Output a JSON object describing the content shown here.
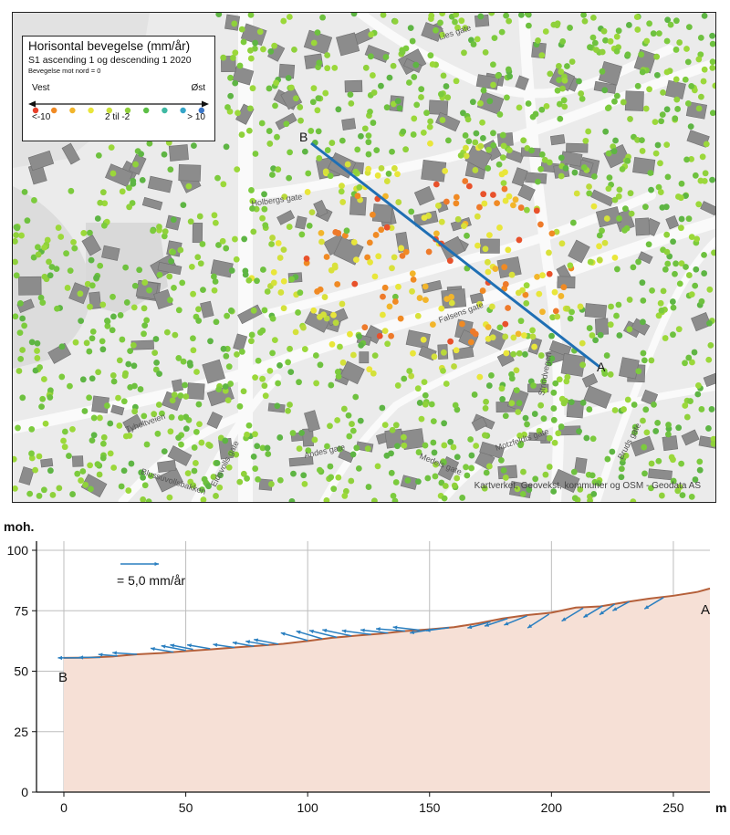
{
  "legend": {
    "title": "Horisontal bevegelse (mm/år)",
    "subtitle": "S1 ascending 1 og descending 1 2020",
    "note": "Bevegelse mot nord = 0",
    "west_label": "Vest",
    "east_label": "Øst",
    "min_label": "<-10",
    "mid_label": "2 til -2",
    "max_label": "> 10",
    "colors": [
      "#e8412b",
      "#f08a24",
      "#f2b52b",
      "#e9e63a",
      "#c9df3a",
      "#8fcf3c",
      "#5cbf45",
      "#3fb9a3",
      "#36a6c9",
      "#3a76c8"
    ]
  },
  "map": {
    "point_a_label": "A",
    "point_b_label": "B",
    "profile_line_color": "#1f6fb4",
    "credit": "Kartverket, Geovekst, kommuner og OSM - Geodata AS",
    "street_labels": [
      "Lies gate",
      "Holbergs gate",
      "Falsens gate",
      "Strindvegen",
      "Tyholtveien",
      "Blussuvollsbakken",
      "Eidsvolls gate",
      "Medels gate",
      "Motzfeldts gate",
      "Andes gate",
      "Bruds gate"
    ]
  },
  "chart_data": {
    "type": "line",
    "title": "",
    "ylabel": "moh.",
    "xlabel": "m",
    "xlim": [
      0,
      265
    ],
    "ylim": [
      0,
      100
    ],
    "x_ticks": [
      0,
      50,
      100,
      150,
      200,
      250
    ],
    "y_ticks": [
      0,
      25,
      50,
      75,
      100
    ],
    "grid": true,
    "start_label": "B",
    "end_label": "A",
    "scale_label": "= 5,0 mm/år",
    "scale_value_mm_per_year": 5.0,
    "profile_color": "#b5603a",
    "fill_color": "#f6e0d6",
    "arrow_color": "#2a7fc0",
    "profile": {
      "x": [
        0,
        10,
        20,
        30,
        40,
        50,
        60,
        70,
        80,
        90,
        100,
        110,
        120,
        130,
        140,
        150,
        160,
        170,
        180,
        190,
        200,
        210,
        220,
        230,
        240,
        250,
        260,
        265
      ],
      "y": [
        55.5,
        55.6,
        56.1,
        57.0,
        57.5,
        58.3,
        59.0,
        59.8,
        60.5,
        61.3,
        62.5,
        63.8,
        64.7,
        65.5,
        66.6,
        67.3,
        68.2,
        69.8,
        71.8,
        73.2,
        74.2,
        76.3,
        76.8,
        78.5,
        80.0,
        81.2,
        82.8,
        84.2
      ]
    },
    "arrows": [
      {
        "x": 7,
        "y": 55.5,
        "e": -3.0,
        "n": 0.0
      },
      {
        "x": 15,
        "y": 55.7,
        "e": -2.8,
        "n": 0.0
      },
      {
        "x": 22,
        "y": 56.3,
        "e": -2.5,
        "n": 0.2
      },
      {
        "x": 30,
        "y": 57.0,
        "e": -3.2,
        "n": 0.2
      },
      {
        "x": 45,
        "y": 57.9,
        "e": -3.0,
        "n": 0.5
      },
      {
        "x": 50,
        "y": 58.6,
        "e": -3.2,
        "n": 0.6
      },
      {
        "x": 53,
        "y": 59.0,
        "e": -3.0,
        "n": 0.6
      },
      {
        "x": 60,
        "y": 59.3,
        "e": -3.0,
        "n": 0.5
      },
      {
        "x": 70,
        "y": 59.8,
        "e": -2.8,
        "n": 0.4
      },
      {
        "x": 78,
        "y": 60.3,
        "e": -2.8,
        "n": 0.5
      },
      {
        "x": 84,
        "y": 60.8,
        "e": -3.0,
        "n": 0.5
      },
      {
        "x": 88,
        "y": 61.2,
        "e": -3.2,
        "n": 0.6
      },
      {
        "x": 100,
        "y": 62.7,
        "e": -3.5,
        "n": 1.0
      },
      {
        "x": 106,
        "y": 63.4,
        "e": -3.4,
        "n": 1.0
      },
      {
        "x": 112,
        "y": 64.0,
        "e": -3.6,
        "n": 0.9
      },
      {
        "x": 118,
        "y": 64.6,
        "e": -3.8,
        "n": 0.8
      },
      {
        "x": 126,
        "y": 65.2,
        "e": -3.8,
        "n": 0.5
      },
      {
        "x": 133,
        "y": 65.8,
        "e": -3.6,
        "n": 0.4
      },
      {
        "x": 140,
        "y": 66.6,
        "e": -3.8,
        "n": 0.3
      },
      {
        "x": 146,
        "y": 67.0,
        "e": -3.5,
        "n": 0.4
      },
      {
        "x": 152,
        "y": 67.4,
        "e": -3.2,
        "n": -0.5
      },
      {
        "x": 158,
        "y": 68.0,
        "e": -3.0,
        "n": -0.4
      },
      {
        "x": 175,
        "y": 70.4,
        "e": -3.0,
        "n": -0.8
      },
      {
        "x": 182,
        "y": 71.8,
        "e": -3.0,
        "n": -1.0
      },
      {
        "x": 190,
        "y": 72.9,
        "e": -3.0,
        "n": -1.2
      },
      {
        "x": 199,
        "y": 73.6,
        "e": -2.8,
        "n": -1.8
      },
      {
        "x": 213,
        "y": 76.1,
        "e": -2.8,
        "n": -1.7
      },
      {
        "x": 221,
        "y": 77.0,
        "e": -2.5,
        "n": -1.5
      },
      {
        "x": 226,
        "y": 77.8,
        "e": -2.0,
        "n": -1.4
      },
      {
        "x": 232,
        "y": 78.8,
        "e": -2.2,
        "n": -1.2
      },
      {
        "x": 246,
        "y": 80.5,
        "e": -2.5,
        "n": -1.5
      }
    ]
  }
}
